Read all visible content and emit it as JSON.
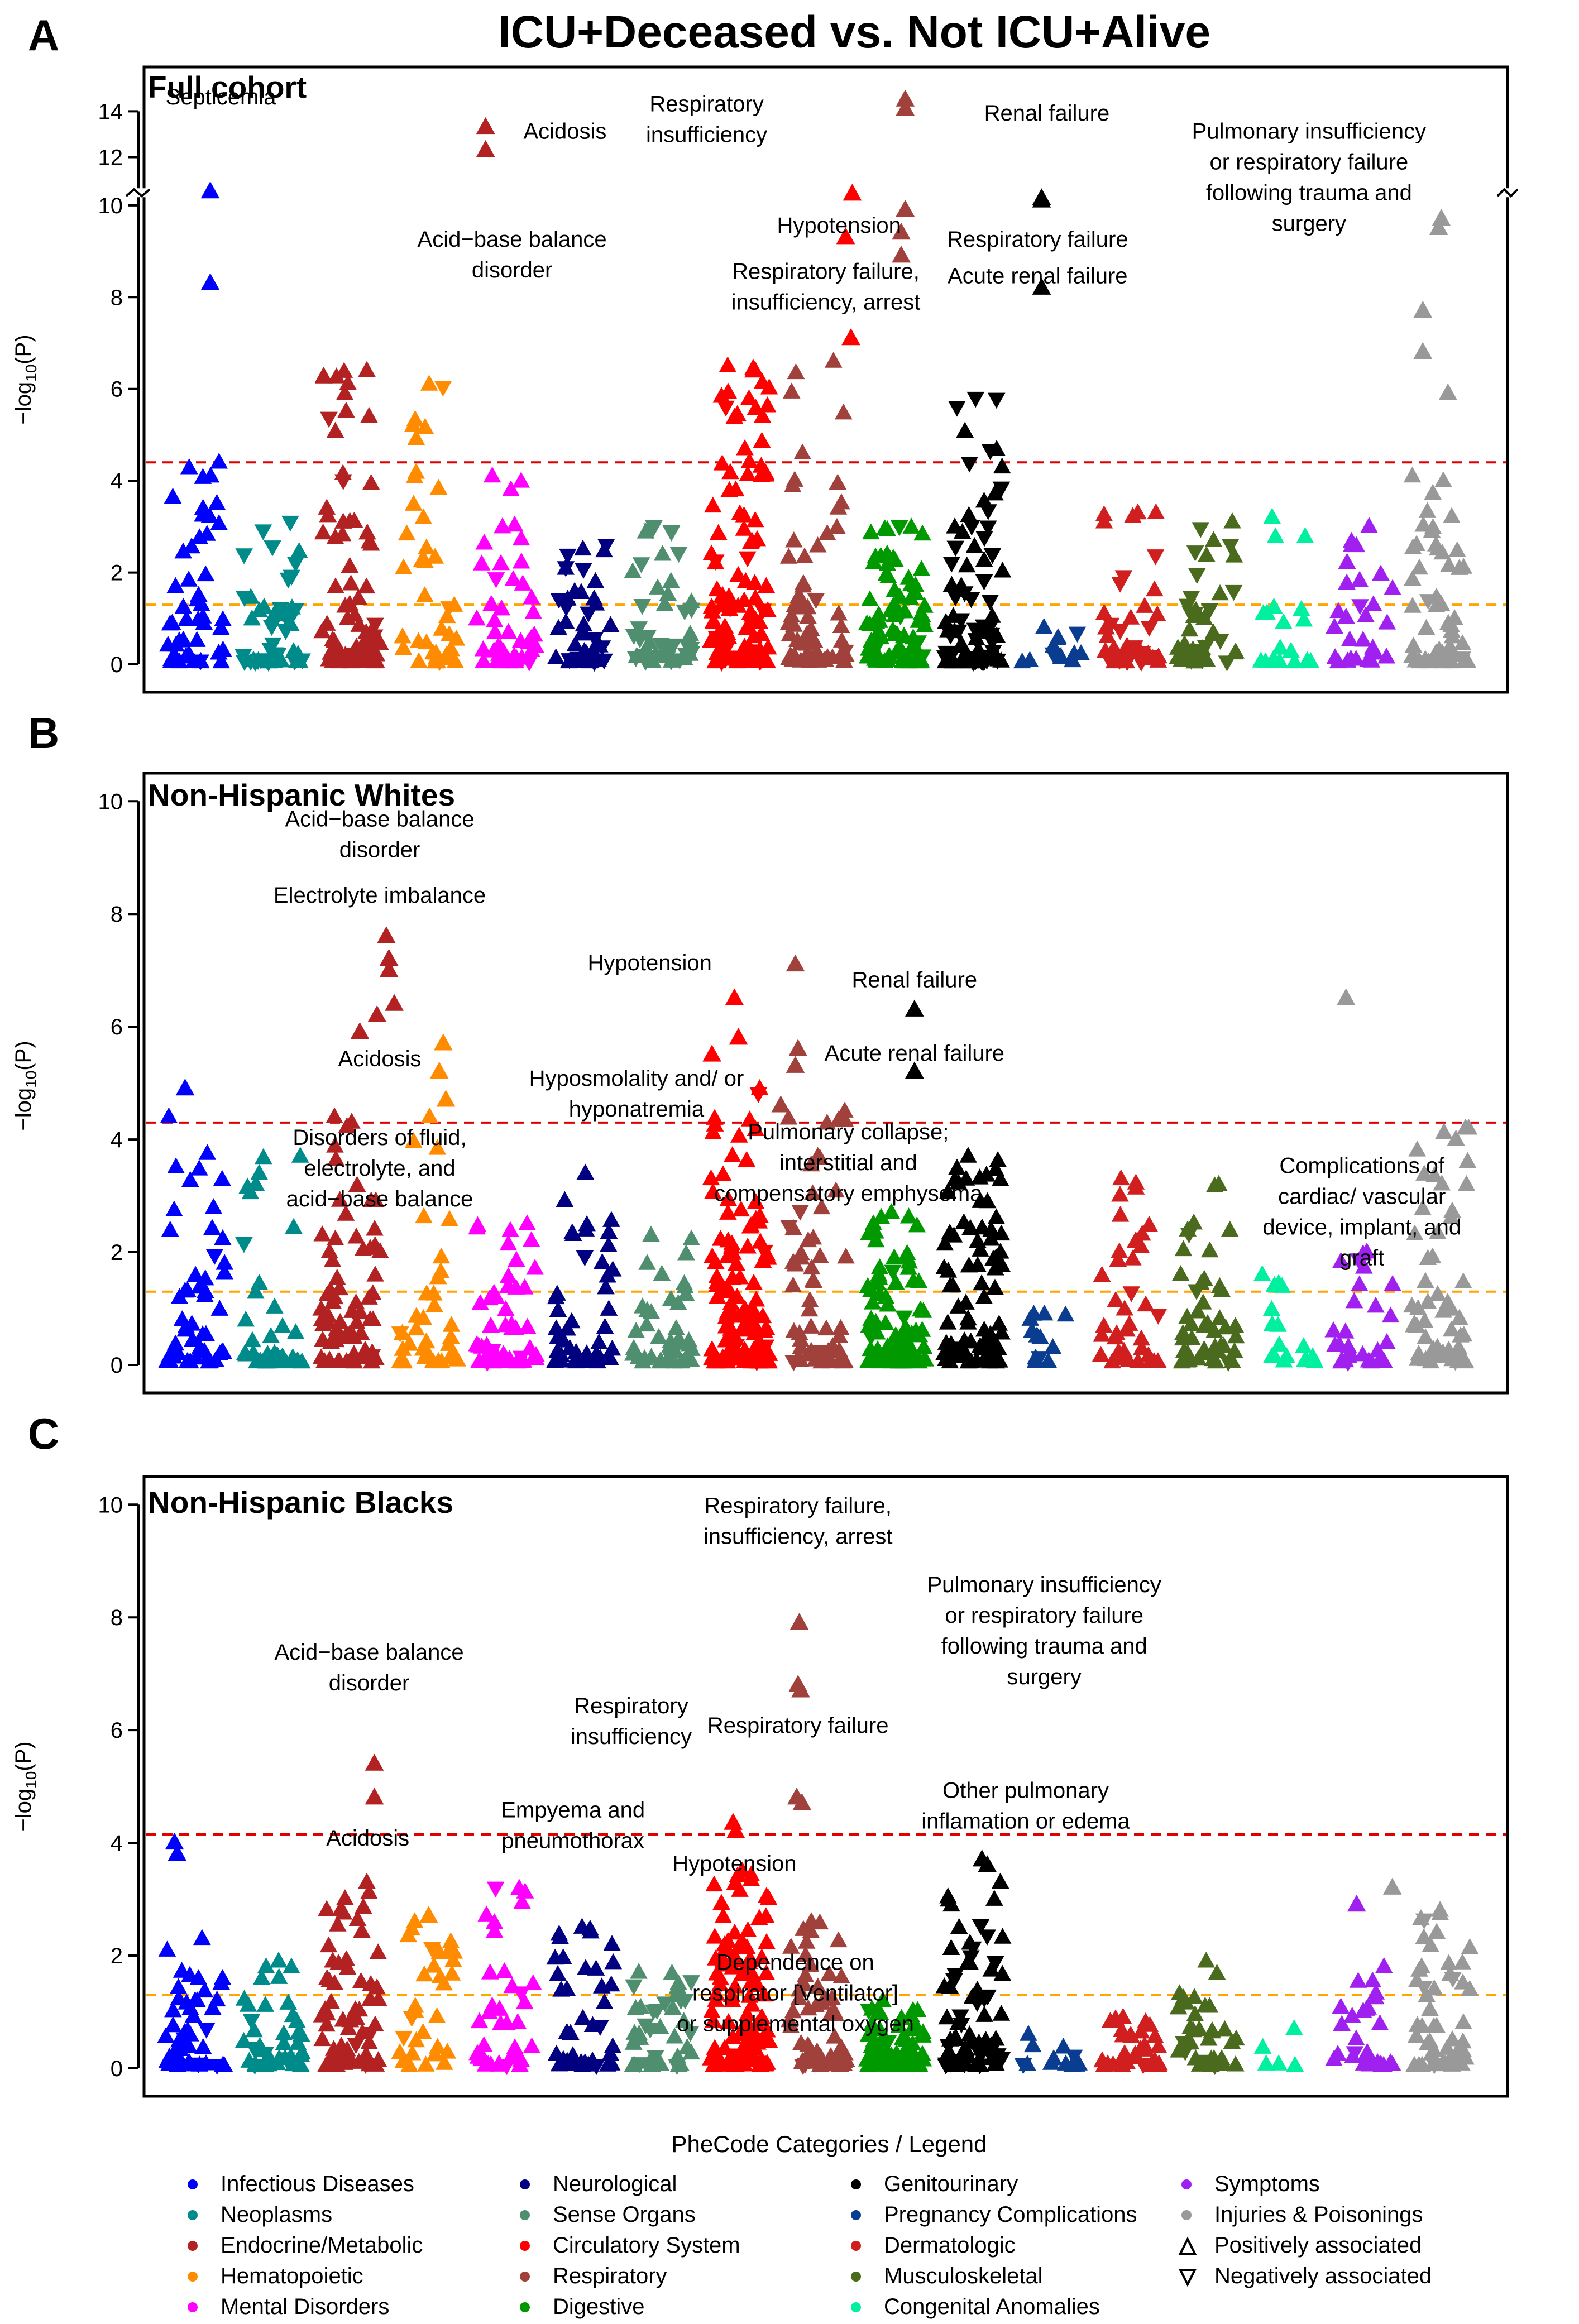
{
  "figure": {
    "title": "ICU+Deceased vs. Not ICU+Alive",
    "xlabel": "PheCode Categories / Legend",
    "ylabel_prefix": "−log",
    "ylabel_sub": "10",
    "ylabel_suffix": "(P)"
  },
  "categories": [
    {
      "name": "Infectious Diseases",
      "color": "#0000ff"
    },
    {
      "name": "Neoplasms",
      "color": "#008b8b"
    },
    {
      "name": "Endocrine/Metabolic",
      "color": "#b22222"
    },
    {
      "name": "Hematopoietic",
      "color": "#ff8c00"
    },
    {
      "name": "Mental Disorders",
      "color": "#ff00ff"
    },
    {
      "name": "Neurological",
      "color": "#000080"
    },
    {
      "name": "Sense Organs",
      "color": "#4f8f6f"
    },
    {
      "name": "Circulatory System",
      "color": "#ff0000"
    },
    {
      "name": "Respiratory",
      "color": "#a0413c"
    },
    {
      "name": "Digestive",
      "color": "#009a00"
    },
    {
      "name": "Genitourinary",
      "color": "#000000"
    },
    {
      "name": "Pregnancy Complications",
      "color": "#0a3d8f"
    },
    {
      "name": "Dermatologic",
      "color": "#d11f1f"
    },
    {
      "name": "Musculoskeletal",
      "color": "#4a6b1e"
    },
    {
      "name": "Congenital Anomalies",
      "color": "#00f0a0"
    },
    {
      "name": "Symptoms",
      "color": "#a020f0"
    },
    {
      "name": "Injuries & Poisonings",
      "color": "#999999"
    }
  ],
  "legend": {
    "positive": "Positively associated",
    "negative": "Negatively associated"
  },
  "chart_data": [
    {
      "type": "scatter",
      "panel": "A",
      "subtitle": "Full cohort",
      "ylim": [
        0,
        15.2
      ],
      "axis_break": {
        "from": 10.5,
        "to": 10
      },
      "yticks": [
        {
          "value": 0,
          "label": "0"
        },
        {
          "value": 2,
          "label": "2"
        },
        {
          "value": 4,
          "label": "4"
        },
        {
          "value": 6,
          "label": "6"
        },
        {
          "value": 8,
          "label": "8"
        },
        {
          "value": 10,
          "label": "10"
        },
        {
          "value": 12,
          "label": "12"
        },
        {
          "value": 14,
          "label": "14"
        }
      ],
      "thresholds": {
        "bonferroni": 4.4,
        "nominal": 1.3
      },
      "annotations": [
        {
          "text": "Septicemia",
          "x": 4.8,
          "y": 14.3
        },
        {
          "text": "Acidosis",
          "x": 30.8,
          "y": 12.8
        },
        {
          "text": "Respiratory\ninsufficiency",
          "x": 41.5,
          "y": 14.0
        },
        {
          "text": "Renal failure",
          "x": 67.2,
          "y": 13.6
        },
        {
          "text": "Pulmonary insufficiency\nor respiratory failure\nfollowing trauma and\nsurgery",
          "x": 87.0,
          "y": 12.8
        },
        {
          "text": "Hypotension",
          "x": 51.5,
          "y": 9.4
        },
        {
          "text": "Respiratory failure",
          "x": 66.5,
          "y": 9.1
        },
        {
          "text": "Acid−base balance\ndisorder",
          "x": 26.8,
          "y": 9.1
        },
        {
          "text": "Acute renal failure",
          "x": 66.5,
          "y": 8.3
        },
        {
          "text": "Respiratory failure,\ninsufficiency, arrest",
          "x": 50.5,
          "y": 8.4
        }
      ],
      "top_hits": [
        {
          "cat": 0,
          "x": 4.0,
          "y": 10.5
        },
        {
          "cat": 0,
          "x": 4.0,
          "y": 8.3
        },
        {
          "cat": 2,
          "x": 24.8,
          "y": 13.3
        },
        {
          "cat": 2,
          "x": 24.8,
          "y": 12.3
        },
        {
          "cat": 7,
          "x": 52.5,
          "y": 10.4
        },
        {
          "cat": 7,
          "x": 52.0,
          "y": 9.3
        },
        {
          "cat": 8,
          "x": 56.5,
          "y": 14.5
        },
        {
          "cat": 8,
          "x": 56.5,
          "y": 14.1
        },
        {
          "cat": 8,
          "x": 56.5,
          "y": 9.9
        },
        {
          "cat": 8,
          "x": 56.2,
          "y": 9.4
        },
        {
          "cat": 8,
          "x": 56.2,
          "y": 8.9
        },
        {
          "cat": 10,
          "x": 66.8,
          "y": 10.2
        },
        {
          "cat": 10,
          "x": 66.8,
          "y": 10.1
        },
        {
          "cat": 10,
          "x": 66.8,
          "y": 8.2
        },
        {
          "cat": 16,
          "x": 97.0,
          "y": 9.7
        },
        {
          "cat": 16,
          "x": 96.8,
          "y": 9.5
        },
        {
          "cat": 16,
          "x": 95.6,
          "y": 7.7
        },
        {
          "cat": 16,
          "x": 95.6,
          "y": 6.8
        },
        {
          "cat": 16,
          "x": 97.5,
          "y": 5.9
        },
        {
          "cat": 7,
          "x": 52.4,
          "y": 7.1
        }
      ]
    },
    {
      "type": "scatter",
      "panel": "B",
      "subtitle": "Non-Hispanic Whites",
      "ylim": [
        0,
        10.3
      ],
      "yticks": [
        {
          "value": 0,
          "label": "0"
        },
        {
          "value": 2,
          "label": "2"
        },
        {
          "value": 4,
          "label": "4"
        },
        {
          "value": 6,
          "label": "6"
        },
        {
          "value": 8,
          "label": "8"
        },
        {
          "value": 10,
          "label": "10"
        }
      ],
      "thresholds": {
        "bonferroni": 4.3,
        "nominal": 1.3
      },
      "annotations": [
        {
          "text": "Acid−base balance\ndisorder",
          "x": 16.8,
          "y": 9.55
        },
        {
          "text": "Electrolyte imbalance",
          "x": 16.8,
          "y": 8.2
        },
        {
          "text": "Hypotension",
          "x": 37.2,
          "y": 7.0
        },
        {
          "text": "Renal failure",
          "x": 57.2,
          "y": 6.7
        },
        {
          "text": "Acidosis",
          "x": 16.8,
          "y": 5.3
        },
        {
          "text": "Acute renal failure",
          "x": 57.2,
          "y": 5.4
        },
        {
          "text": "Hyposmolality and/ or\nhyponatremia",
          "x": 36.2,
          "y": 4.95
        },
        {
          "text": "Pulmonary collapse;\ninterstitial and\ncompensatory emphysema",
          "x": 52.2,
          "y": 4.0
        },
        {
          "text": "Disorders of fluid,\nelectrolyte, and\nacid−base balance",
          "x": 16.8,
          "y": 3.9
        },
        {
          "text": "Complications of\ncardiac/ vascular\ndevice, implant, and\ngraft",
          "x": 91.0,
          "y": 3.4
        }
      ],
      "top_hits": [
        {
          "cat": 2,
          "x": 17.3,
          "y": 7.6
        },
        {
          "cat": 2,
          "x": 17.5,
          "y": 7.2
        },
        {
          "cat": 2,
          "x": 17.5,
          "y": 7.0
        },
        {
          "cat": 2,
          "x": 17.9,
          "y": 6.4
        },
        {
          "cat": 2,
          "x": 15.3,
          "y": 5.9
        },
        {
          "cat": 2,
          "x": 16.6,
          "y": 6.2
        },
        {
          "cat": 3,
          "x": 21.6,
          "y": 5.7
        },
        {
          "cat": 3,
          "x": 21.3,
          "y": 5.2
        },
        {
          "cat": 3,
          "x": 21.8,
          "y": 4.7
        },
        {
          "cat": 7,
          "x": 43.6,
          "y": 6.5
        },
        {
          "cat": 7,
          "x": 43.9,
          "y": 5.8
        },
        {
          "cat": 7,
          "x": 41.9,
          "y": 5.5
        },
        {
          "cat": 8,
          "x": 48.2,
          "y": 7.1
        },
        {
          "cat": 8,
          "x": 48.4,
          "y": 5.6
        },
        {
          "cat": 8,
          "x": 48.2,
          "y": 5.3
        },
        {
          "cat": 8,
          "x": 47.1,
          "y": 4.6
        },
        {
          "cat": 10,
          "x": 57.2,
          "y": 6.3
        },
        {
          "cat": 10,
          "x": 57.2,
          "y": 5.2
        },
        {
          "cat": 16,
          "x": 89.8,
          "y": 6.5
        },
        {
          "cat": 0,
          "x": 2.1,
          "y": 4.9
        }
      ]
    },
    {
      "type": "scatter",
      "panel": "C",
      "subtitle": "Non-Hispanic Blacks",
      "ylim": [
        0,
        10.3
      ],
      "yticks": [
        {
          "value": 0,
          "label": "0"
        },
        {
          "value": 2,
          "label": "2"
        },
        {
          "value": 4,
          "label": "4"
        },
        {
          "value": 6,
          "label": "6"
        },
        {
          "value": 8,
          "label": "8"
        },
        {
          "value": 10,
          "label": "10"
        }
      ],
      "thresholds": {
        "bonferroni": 4.15,
        "nominal": 1.3
      },
      "annotations": [
        {
          "text": "Respiratory failure,\ninsufficiency, arrest",
          "x": 48.4,
          "y": 9.85
        },
        {
          "text": "Pulmonary insufficiency\nor respiratory failure\nfollowing trauma and\nsurgery",
          "x": 67.0,
          "y": 8.45
        },
        {
          "text": "Acid−base balance\ndisorder",
          "x": 16.0,
          "y": 7.25
        },
        {
          "text": "Respiratory\ninsufficiency",
          "x": 35.8,
          "y": 6.3
        },
        {
          "text": "Respiratory failure",
          "x": 48.4,
          "y": 5.95
        },
        {
          "text": "Empyema and\npneumothorax",
          "x": 31.4,
          "y": 4.45
        },
        {
          "text": "Other pulmonary\ninflamation or edema",
          "x": 65.6,
          "y": 4.8
        },
        {
          "text": "Acidosis",
          "x": 15.9,
          "y": 3.95
        },
        {
          "text": "Hypotension",
          "x": 43.6,
          "y": 3.5
        },
        {
          "text": "Dependence on\nrespirator [Ventilator]\nor supplemental oxygen",
          "x": 48.2,
          "y": 1.75
        }
      ],
      "top_hits": [
        {
          "cat": 8,
          "x": 48.5,
          "y": 7.9
        },
        {
          "cat": 8,
          "x": 48.4,
          "y": 6.8
        },
        {
          "cat": 8,
          "x": 48.6,
          "y": 6.7
        },
        {
          "cat": 8,
          "x": 48.3,
          "y": 4.8
        },
        {
          "cat": 8,
          "x": 48.7,
          "y": 4.7
        },
        {
          "cat": 2,
          "x": 16.4,
          "y": 5.4
        },
        {
          "cat": 2,
          "x": 16.4,
          "y": 4.8
        },
        {
          "cat": 7,
          "x": 43.5,
          "y": 4.35
        },
        {
          "cat": 7,
          "x": 43.7,
          "y": 4.2
        },
        {
          "cat": 0,
          "x": 1.3,
          "y": 4.0
        },
        {
          "cat": 0,
          "x": 1.5,
          "y": 3.8
        },
        {
          "cat": 10,
          "x": 62.3,
          "y": 3.7
        },
        {
          "cat": 10,
          "x": 62.7,
          "y": 3.6
        },
        {
          "cat": 16,
          "x": 93.3,
          "y": 3.2
        },
        {
          "cat": 15,
          "x": 90.6,
          "y": 2.9
        },
        {
          "cat": 3,
          "x": 20.5,
          "y": 2.7
        }
      ]
    }
  ],
  "category_profiles": {
    "A": [
      {
        "max": 4.4,
        "n": 50,
        "neg": 0.05
      },
      {
        "max": 3.1,
        "n": 48,
        "neg": 0.6
      },
      {
        "max": 6.4,
        "n": 70,
        "neg": 0.05
      },
      {
        "max": 6.1,
        "n": 40,
        "neg": 0.05
      },
      {
        "max": 4.1,
        "n": 45,
        "neg": 0.05
      },
      {
        "max": 2.6,
        "n": 45,
        "neg": 0.3
      },
      {
        "max": 3.0,
        "n": 45,
        "neg": 0.5
      },
      {
        "max": 6.5,
        "n": 110,
        "neg": 0.15
      },
      {
        "max": 6.6,
        "n": 60,
        "neg": 0.05
      },
      {
        "max": 3.0,
        "n": 85,
        "neg": 0.05
      },
      {
        "max": 5.8,
        "n": 80,
        "neg": 0.55
      },
      {
        "max": 0.8,
        "n": 12,
        "neg": 0.2
      },
      {
        "max": 3.3,
        "n": 40,
        "neg": 0.4
      },
      {
        "max": 3.1,
        "n": 45,
        "neg": 0.45
      },
      {
        "max": 3.2,
        "n": 18,
        "neg": 0.05
      },
      {
        "max": 3.0,
        "n": 30,
        "neg": 0.05
      },
      {
        "max": 4.1,
        "n": 55,
        "neg": 0.05
      }
    ],
    "B": [
      {
        "max": 4.4,
        "n": 50,
        "neg": 0.05
      },
      {
        "max": 3.7,
        "n": 45,
        "neg": 0.05
      },
      {
        "max": 4.4,
        "n": 65,
        "neg": 0.05
      },
      {
        "max": 4.4,
        "n": 35,
        "neg": 0.05
      },
      {
        "max": 2.5,
        "n": 50,
        "neg": 0.05
      },
      {
        "max": 3.4,
        "n": 45,
        "neg": 0.05
      },
      {
        "max": 2.3,
        "n": 45,
        "neg": 0.05
      },
      {
        "max": 4.9,
        "n": 120,
        "neg": 0.05
      },
      {
        "max": 4.5,
        "n": 55,
        "neg": 0.05
      },
      {
        "max": 2.7,
        "n": 85,
        "neg": 0.05
      },
      {
        "max": 3.7,
        "n": 80,
        "neg": 0.05
      },
      {
        "max": 0.9,
        "n": 12,
        "neg": 0.05
      },
      {
        "max": 3.3,
        "n": 40,
        "neg": 0.05
      },
      {
        "max": 3.2,
        "n": 45,
        "neg": 0.05
      },
      {
        "max": 1.6,
        "n": 18,
        "neg": 0.05
      },
      {
        "max": 2.0,
        "n": 30,
        "neg": 0.05
      },
      {
        "max": 4.2,
        "n": 55,
        "neg": 0.05
      }
    ],
    "C": [
      {
        "max": 2.3,
        "n": 45,
        "neg": 0.05
      },
      {
        "max": 1.9,
        "n": 40,
        "neg": 0.1
      },
      {
        "max": 3.3,
        "n": 65,
        "neg": 0.05
      },
      {
        "max": 2.6,
        "n": 30,
        "neg": 0.05
      },
      {
        "max": 3.2,
        "n": 40,
        "neg": 0.05
      },
      {
        "max": 2.5,
        "n": 40,
        "neg": 0.05
      },
      {
        "max": 1.7,
        "n": 40,
        "neg": 0.3
      },
      {
        "max": 3.5,
        "n": 110,
        "neg": 0.05
      },
      {
        "max": 2.6,
        "n": 55,
        "neg": 0.05
      },
      {
        "max": 1.2,
        "n": 70,
        "neg": 0.05
      },
      {
        "max": 3.3,
        "n": 75,
        "neg": 0.45
      },
      {
        "max": 0.6,
        "n": 12,
        "neg": 0.05
      },
      {
        "max": 0.9,
        "n": 35,
        "neg": 0.05
      },
      {
        "max": 1.9,
        "n": 35,
        "neg": 0.15
      },
      {
        "max": 0.7,
        "n": 5,
        "neg": 0.05
      },
      {
        "max": 1.8,
        "n": 28,
        "neg": 0.05
      },
      {
        "max": 2.8,
        "n": 50,
        "neg": 0.05
      }
    ]
  },
  "x_extent": [
    -1.0,
    102.0
  ]
}
